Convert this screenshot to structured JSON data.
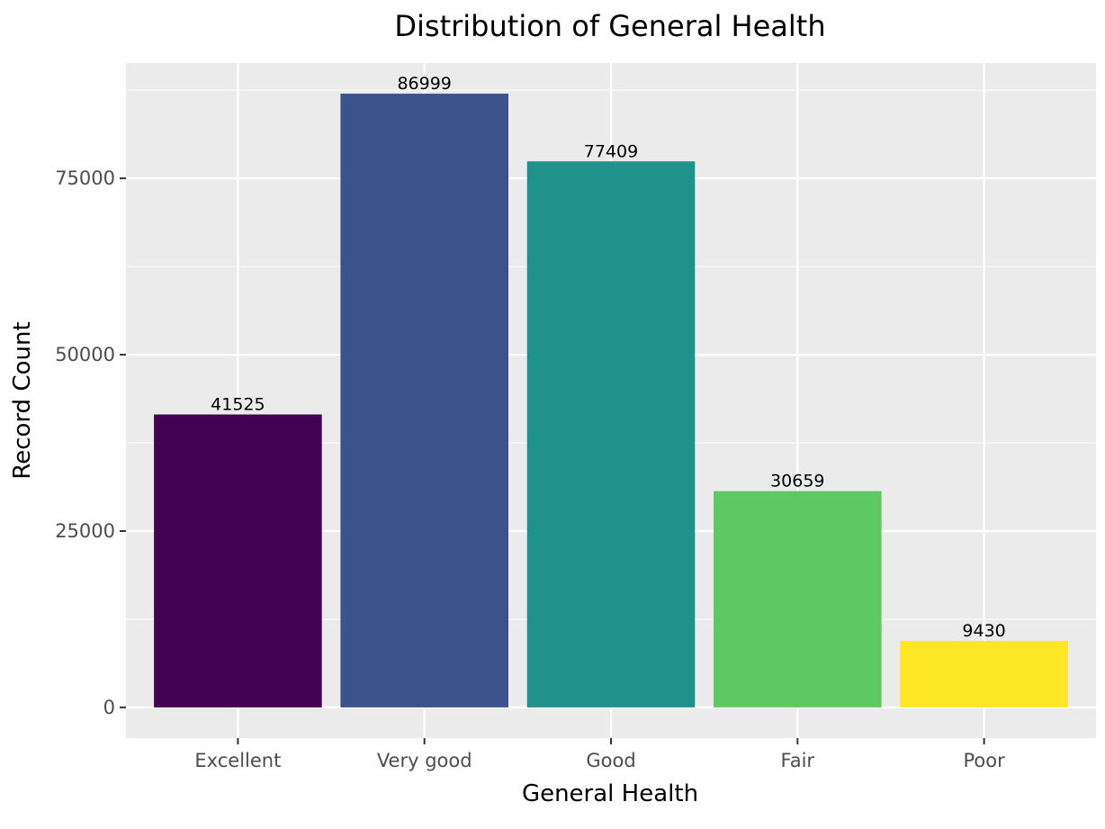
{
  "chart_data": {
    "type": "bar",
    "title": "Distribution of General Health",
    "xlabel": "General Health",
    "ylabel": "Record Count",
    "categories": [
      "Excellent",
      "Very good",
      "Good",
      "Fair",
      "Poor"
    ],
    "values": [
      41525,
      86999,
      77409,
      30659,
      9430
    ],
    "value_labels": [
      "41525",
      "86999",
      "77409",
      "30659",
      "9430"
    ],
    "colors": [
      "#440154",
      "#3b528b",
      "#21918c",
      "#5ec962",
      "#fde725"
    ],
    "ylim": [
      -4350,
      91350
    ],
    "yticks": [
      0,
      25000,
      50000,
      75000
    ],
    "ytick_labels": [
      "0",
      "25000",
      "50000",
      "75000"
    ],
    "grid": true,
    "panel_background": "#ebebeb",
    "grid_color": "#ffffff"
  }
}
